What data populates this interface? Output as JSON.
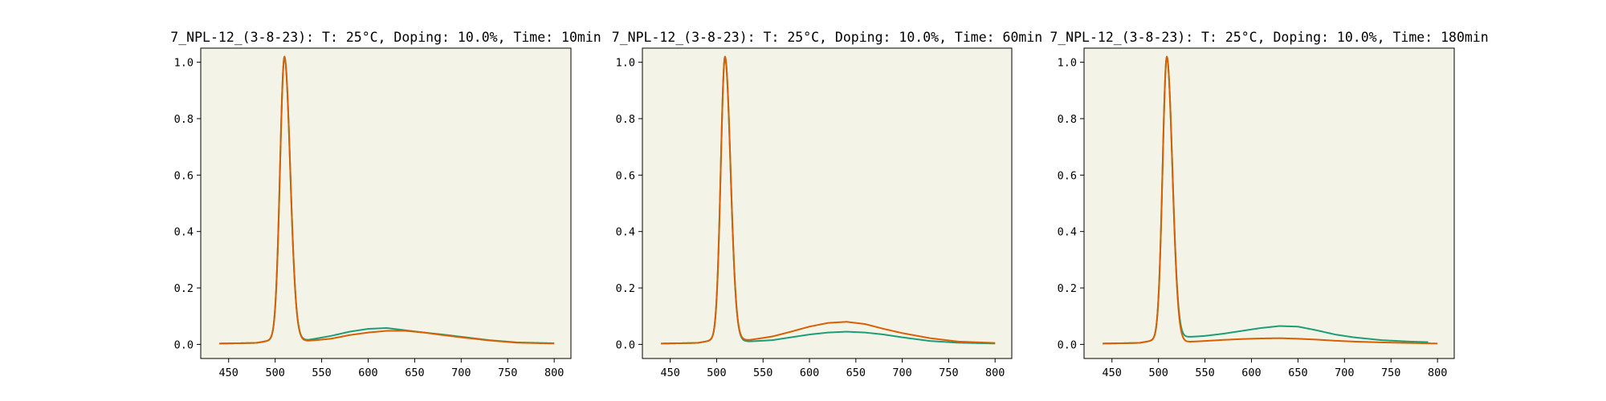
{
  "colors": {
    "background": "#ffffff",
    "axes_face": "#f4f3e8",
    "series_green": "#1b9e77",
    "series_orange": "#d95f02"
  },
  "chart_data": [
    {
      "type": "line",
      "title": "7_NPL-12_(3-8-23): T: 25°C, Doping: 10.0%, Time: 10min",
      "xlabel": "",
      "ylabel": "",
      "xlim": [
        420,
        818
      ],
      "ylim": [
        -0.05,
        1.05
      ],
      "xticks": [
        450,
        500,
        550,
        600,
        650,
        700,
        750,
        800
      ],
      "yticks": [
        0.0,
        0.2,
        0.4,
        0.6,
        0.8,
        1.0
      ],
      "grid": false,
      "peak": {
        "center": 510,
        "sigma_left": 4.8,
        "sigma_right": 6.2,
        "tail_scale": 0.02,
        "tail_decay": 8
      },
      "series": [
        {
          "color": "#1b9e77",
          "x": [
            440,
            480,
            495,
            535,
            560,
            580,
            600,
            620,
            640,
            660,
            680,
            700,
            730,
            760,
            800
          ],
          "y": [
            0.003,
            0.005,
            0.012,
            0.015,
            0.03,
            0.045,
            0.055,
            0.058,
            0.05,
            0.042,
            0.035,
            0.027,
            0.015,
            0.007,
            0.004
          ]
        },
        {
          "color": "#d95f02",
          "x": [
            440,
            480,
            495,
            535,
            560,
            580,
            600,
            620,
            640,
            660,
            680,
            700,
            730,
            760,
            800
          ],
          "y": [
            0.003,
            0.005,
            0.012,
            0.012,
            0.02,
            0.033,
            0.042,
            0.048,
            0.048,
            0.042,
            0.033,
            0.025,
            0.014,
            0.006,
            0.003
          ]
        }
      ]
    },
    {
      "type": "line",
      "title": "7_NPL-12_(3-8-23): T: 25°C, Doping: 10.0%, Time: 60min",
      "xlabel": "",
      "ylabel": "",
      "xlim": [
        420,
        818
      ],
      "ylim": [
        -0.05,
        1.05
      ],
      "xticks": [
        450,
        500,
        550,
        600,
        650,
        700,
        750,
        800
      ],
      "yticks": [
        0.0,
        0.2,
        0.4,
        0.6,
        0.8,
        1.0
      ],
      "grid": false,
      "peak": {
        "center": 509,
        "sigma_left": 4.6,
        "sigma_right": 6.0,
        "tail_scale": 0.02,
        "tail_decay": 8
      },
      "series": [
        {
          "color": "#1b9e77",
          "x": [
            440,
            480,
            495,
            535,
            560,
            580,
            600,
            620,
            640,
            660,
            680,
            700,
            730,
            760,
            800
          ],
          "y": [
            0.003,
            0.005,
            0.012,
            0.01,
            0.015,
            0.025,
            0.035,
            0.042,
            0.045,
            0.042,
            0.035,
            0.025,
            0.012,
            0.006,
            0.003
          ]
        },
        {
          "color": "#d95f02",
          "x": [
            440,
            480,
            495,
            535,
            560,
            580,
            600,
            620,
            640,
            660,
            680,
            700,
            730,
            760,
            800
          ],
          "y": [
            0.003,
            0.005,
            0.012,
            0.015,
            0.028,
            0.045,
            0.063,
            0.076,
            0.08,
            0.072,
            0.055,
            0.04,
            0.022,
            0.01,
            0.005
          ]
        }
      ]
    },
    {
      "type": "line",
      "title": "7_NPL-12_(3-8-23): T: 25°C, Doping: 10.0%, Time: 180min",
      "xlabel": "",
      "ylabel": "",
      "xlim": [
        420,
        818
      ],
      "ylim": [
        -0.05,
        1.05
      ],
      "xticks": [
        450,
        500,
        550,
        600,
        650,
        700,
        750,
        800
      ],
      "yticks": [
        0.0,
        0.2,
        0.4,
        0.6,
        0.8,
        1.0
      ],
      "grid": false,
      "peak": {
        "center": 509,
        "sigma_left": 4.6,
        "sigma_right": 6.0,
        "tail_scale": 0.02,
        "tail_decay": 8
      },
      "series": [
        {
          "color": "#1b9e77",
          "x": [
            440,
            480,
            495,
            530,
            550,
            570,
            590,
            610,
            630,
            650,
            670,
            690,
            710,
            740,
            770,
            790
          ],
          "y": [
            0.003,
            0.005,
            0.012,
            0.025,
            0.03,
            0.038,
            0.048,
            0.058,
            0.065,
            0.063,
            0.05,
            0.035,
            0.025,
            0.015,
            0.01,
            0.008
          ]
        },
        {
          "color": "#d95f02",
          "x": [
            440,
            480,
            495,
            530,
            550,
            570,
            590,
            610,
            630,
            650,
            670,
            690,
            710,
            740,
            770,
            800
          ],
          "y": [
            0.003,
            0.005,
            0.012,
            0.008,
            0.012,
            0.016,
            0.019,
            0.021,
            0.022,
            0.02,
            0.017,
            0.013,
            0.01,
            0.007,
            0.005,
            0.003
          ]
        }
      ]
    }
  ]
}
